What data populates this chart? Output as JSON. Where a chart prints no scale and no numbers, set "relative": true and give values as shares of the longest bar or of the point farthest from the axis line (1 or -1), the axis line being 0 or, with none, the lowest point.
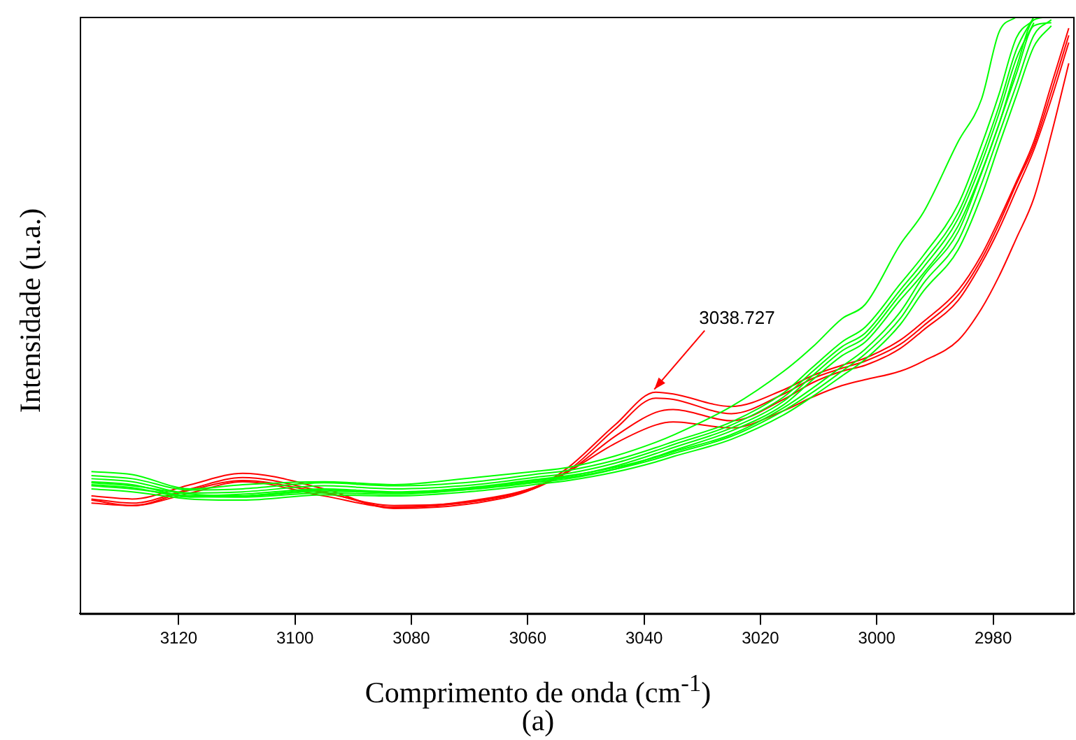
{
  "chart_data": {
    "type": "line",
    "xlabel": "Comprimento de onda (cm$^{-1}$)",
    "ylabel": "Intensidade (u.a.)",
    "relative": true,
    "grid": false,
    "marker": "none",
    "line_style": "solid",
    "xlim": [
      3137,
      2966
    ],
    "xticks": [
      3120,
      3100,
      3080,
      3060,
      3040,
      3020,
      3000,
      2980
    ],
    "x": [
      3135,
      3128,
      3118,
      3109,
      3095,
      3083,
      3069,
      3059,
      3053,
      3045,
      3038,
      3035,
      3025,
      3016,
      3011,
      3006,
      3002,
      2996,
      2992,
      2986,
      2982,
      2979,
      2976,
      2973,
      2970,
      2967
    ],
    "series": [
      {
        "color": "#00ff00",
        "values": [
          0.238,
          0.233,
          0.209,
          0.216,
          0.221,
          0.216,
          0.228,
          0.238,
          0.245,
          0.264,
          0.287,
          0.299,
          0.347,
          0.406,
          0.447,
          0.494,
          0.518,
          0.618,
          0.672,
          0.791,
          0.862,
          0.974,
          1,
          null,
          null,
          null
        ]
      },
      {
        "color": "#00ff00",
        "values": [
          0.231,
          0.226,
          0.207,
          0.209,
          0.219,
          0.214,
          0.221,
          0.233,
          0.24,
          0.257,
          0.278,
          0.288,
          0.321,
          0.37,
          0.413,
          0.455,
          0.48,
          0.552,
          0.6,
          0.686,
          0.785,
          0.87,
          0.965,
          0.995,
          null,
          null
        ]
      },
      {
        "color": "#00ff00",
        "values": [
          0.226,
          0.221,
          0.202,
          0.204,
          0.214,
          0.209,
          0.216,
          0.228,
          0.235,
          0.252,
          0.273,
          0.283,
          0.316,
          0.363,
          0.406,
          0.447,
          0.47,
          0.542,
          0.589,
          0.672,
          0.767,
          0.85,
          0.945,
          1,
          null,
          null
        ]
      },
      {
        "color": "#00ff00",
        "values": [
          0.221,
          0.216,
          0.197,
          0.2,
          0.209,
          0.204,
          0.211,
          0.223,
          0.23,
          0.247,
          0.268,
          0.278,
          0.311,
          0.356,
          0.399,
          0.44,
          0.463,
          0.534,
          0.58,
          0.662,
          0.755,
          0.838,
          0.93,
          0.99,
          null,
          null
        ]
      },
      {
        "color": "#00ff00",
        "values": [
          0.216,
          0.211,
          0.195,
          0.197,
          0.207,
          0.202,
          0.209,
          0.219,
          0.226,
          0.242,
          0.263,
          0.273,
          0.306,
          0.35,
          0.392,
          0.432,
          0.455,
          0.525,
          0.57,
          0.65,
          0.74,
          0.82,
          0.915,
          0.995,
          1,
          null
        ]
      },
      {
        "color": "#00ff00",
        "values": [
          0.214,
          0.209,
          0.197,
          0.195,
          0.202,
          0.2,
          0.209,
          0.221,
          0.228,
          0.242,
          0.259,
          0.268,
          0.297,
          0.34,
          0.371,
          0.406,
          0.435,
          0.494,
          0.553,
          0.625,
          0.72,
          0.803,
          0.886,
          0.969,
          0.995,
          null
        ]
      },
      {
        "color": "#00ff00",
        "values": [
          0.219,
          0.214,
          0.2,
          0.197,
          0.205,
          0.203,
          0.212,
          0.224,
          0.231,
          0.245,
          0.262,
          0.271,
          0.3,
          0.345,
          0.378,
          0.414,
          0.443,
          0.505,
          0.565,
          0.64,
          0.738,
          0.82,
          0.905,
          0.985,
          0.99,
          null
        ]
      },
      {
        "color": "#00ff00",
        "values": [
          0.209,
          0.204,
          0.192,
          0.19,
          0.199,
          0.197,
          0.205,
          0.216,
          0.223,
          0.237,
          0.254,
          0.263,
          0.292,
          0.333,
          0.364,
          0.398,
          0.426,
          0.484,
          0.54,
          0.61,
          0.7,
          0.785,
          0.868,
          0.95,
          0.985,
          null
        ]
      },
      {
        "color": "#ff0000",
        "values": [
          0.197,
          0.192,
          0.216,
          0.235,
          0.209,
          0.176,
          0.185,
          0.209,
          0.245,
          0.316,
          0.371,
          0.368,
          0.347,
          0.375,
          0.399,
          0.416,
          0.428,
          0.458,
          0.489,
          0.542,
          0.601,
          0.66,
          0.724,
          0.791,
          0.886,
          0.981
        ]
      },
      {
        "color": "#ff0000",
        "values": [
          0.192,
          0.185,
          0.209,
          0.228,
          0.204,
          0.178,
          0.188,
          0.211,
          0.24,
          0.309,
          0.361,
          0.359,
          0.335,
          0.368,
          0.394,
          0.411,
          0.423,
          0.451,
          0.482,
          0.534,
          0.594,
          0.653,
          0.72,
          0.784,
          0.874,
          0.969
        ]
      },
      {
        "color": "#ff0000",
        "values": [
          0.185,
          0.181,
          0.202,
          0.221,
          0.197,
          0.178,
          0.19,
          0.211,
          0.238,
          0.297,
          0.337,
          0.342,
          0.323,
          0.359,
          0.387,
          0.406,
          0.416,
          0.444,
          0.475,
          0.525,
          0.587,
          0.644,
          0.71,
          0.777,
          0.862,
          0.957
        ]
      },
      {
        "color": "#ff0000",
        "values": [
          0.19,
          0.181,
          0.207,
          0.223,
          0.202,
          0.181,
          0.188,
          0.209,
          0.238,
          0.285,
          0.316,
          0.321,
          0.311,
          0.34,
          0.363,
          0.382,
          0.392,
          0.406,
          0.423,
          0.458,
          0.511,
          0.565,
          0.629,
          0.696,
          0.803,
          0.922
        ]
      }
    ],
    "annotations": [
      {
        "text": "3038.727",
        "x": 3038.727,
        "y": 0.371
      },
      "(a)"
    ]
  }
}
